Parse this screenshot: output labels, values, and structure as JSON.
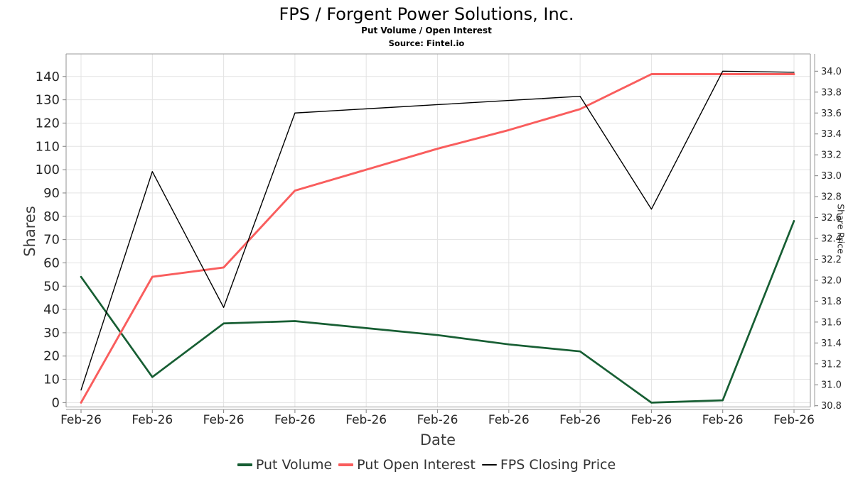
{
  "chart_data": {
    "type": "line",
    "title": "FPS / Forgent Power Solutions, Inc.",
    "subtitle": "Put Volume / Open Interest",
    "source": "Source: Fintel.io",
    "xlabel": "Date",
    "ylabel_left": "Shares",
    "ylabel_right": "Share Price",
    "categories": [
      "Feb-26",
      "Feb-26",
      "Feb-26",
      "Feb-26",
      "Feb-26",
      "Feb-26",
      "Feb-26",
      "Feb-26",
      "Feb-26",
      "Feb-26",
      "Feb-26"
    ],
    "series": [
      {
        "name": "Put Volume",
        "axis": "left",
        "color": "#175e33",
        "line_width": 2.7,
        "values": [
          54,
          11,
          34,
          35,
          32,
          29,
          25,
          22,
          0,
          1,
          78
        ]
      },
      {
        "name": "Put Open Interest",
        "axis": "left",
        "color": "#f95d5d",
        "line_width": 2.9,
        "values": [
          0,
          54,
          58,
          91,
          100,
          109,
          117,
          126,
          141,
          141,
          141
        ]
      },
      {
        "name": "FPS Closing Price",
        "axis": "right",
        "color": "#000000",
        "line_width": 1.4,
        "values": [
          30.95,
          33.04,
          31.74,
          33.6,
          33.64,
          33.68,
          33.72,
          33.76,
          32.68,
          34.0,
          33.99
        ]
      }
    ],
    "left_axis": {
      "min": 0,
      "max": 140,
      "tick_step": 10,
      "ticks": [
        0,
        10,
        20,
        30,
        40,
        50,
        60,
        70,
        80,
        90,
        100,
        110,
        120,
        130,
        140
      ]
    },
    "right_axis": {
      "min": 30.8,
      "max": 34.0,
      "tick_step": 0.2,
      "ticks": [
        "30.8",
        "31.0",
        "31.2",
        "31.4",
        "31.6",
        "31.8",
        "32.0",
        "32.2",
        "32.4",
        "32.6",
        "32.8",
        "33.0",
        "33.2",
        "33.4",
        "33.6",
        "33.8",
        "34.0"
      ]
    },
    "grid": true,
    "legend_position": "bottom-center",
    "colors": {
      "gridline": "#e3e3e3",
      "spine": "#9a9a9a",
      "tick_mark": "#8a8a8a",
      "tick_label": "#262626",
      "axis_label": "#3c3c3c",
      "legend_text": "#333333",
      "background": "#ffffff"
    }
  }
}
